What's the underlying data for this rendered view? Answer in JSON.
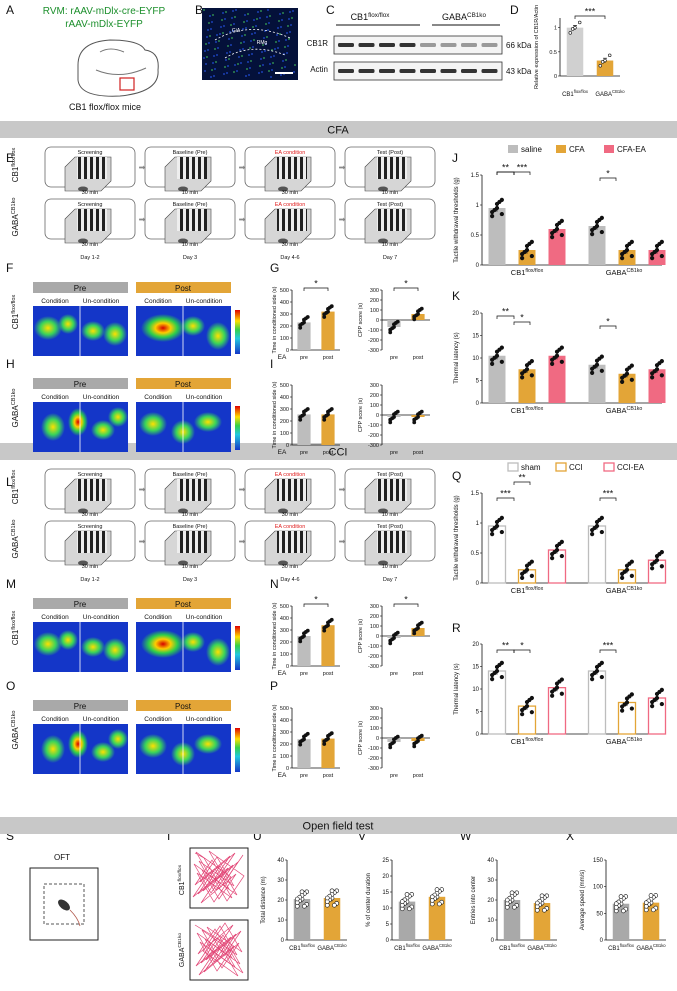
{
  "panel_letters": [
    "A",
    "B",
    "C",
    "D",
    "E",
    "F",
    "G",
    "H",
    "I",
    "J",
    "K",
    "L",
    "M",
    "N",
    "O",
    "P",
    "Q",
    "R",
    "S",
    "T",
    "U",
    "V",
    "W",
    "X"
  ],
  "sections": {
    "cfa": "CFA",
    "cci": "CCI",
    "oft": "Open field test"
  },
  "panel_a": {
    "virus_line1": "RVM: rAAV-mDlx-cre-EYFP",
    "virus_line2": "rAAV-mDlx-EYFP",
    "mouse_label": "CB1 flox/flox mice"
  },
  "panel_b": {
    "region_left": "GiA",
    "region_right": "RMg"
  },
  "panel_c": {
    "group1": "CB1",
    "group1_sup": "flox/flox",
    "group2": "GABA",
    "group2_sup": "CB1ko",
    "band1": "CB1R",
    "band1_size": "66 kDa",
    "band2": "Actin",
    "band2_size": "43 kDa"
  },
  "genotypes": {
    "flox": "CB1",
    "flox_sup": "flox/flox",
    "ko": "GABA",
    "ko_sup": "CB1ko"
  },
  "protocol": {
    "stages": [
      "Screening",
      "Baseline (Pre)",
      "EA condition",
      "Test (Post)"
    ],
    "durations": [
      "30 min",
      "10 min",
      "30 min",
      "10 min"
    ],
    "days": [
      "Day 1-2",
      "Day 3",
      "Day 4-6",
      "Day 7"
    ]
  },
  "heatmap": {
    "pre": "Pre",
    "post": "Post",
    "condition": "Condition",
    "uncondition": "Un-condition"
  },
  "legends": {
    "cfa": [
      "saline",
      "CFA",
      "CFA-EA"
    ],
    "cci": [
      "sham",
      "CCI",
      "CCI-EA"
    ]
  },
  "colors": {
    "grey": "#bdbdbd",
    "orange": "#e3a537",
    "pink": "#f06a82",
    "banner": "#c8c8c8",
    "red_text": "#e02020"
  },
  "significance": {
    "three": "***",
    "two": "**",
    "one": "*"
  },
  "oft": {
    "label": "OFT"
  },
  "chart_data": [
    {
      "panel": "D",
      "type": "bar",
      "title": "",
      "ylabel": "Relative expression of CB1R/Actin",
      "categories": [
        "CB1 flox/flox",
        "GABA CB1ko"
      ],
      "values": [
        1.0,
        0.32
      ],
      "ylim": [
        0,
        1.2
      ],
      "sig": "***"
    },
    {
      "panel": "G-left",
      "type": "bar",
      "ylabel": "Time in conditioned side (s)",
      "xlabel_prefix": "EA",
      "categories": [
        "pre",
        "post"
      ],
      "values": [
        230,
        320
      ],
      "yticks": [
        0,
        100,
        200,
        300,
        400,
        500
      ],
      "ylim": [
        0,
        500
      ],
      "sig": "*"
    },
    {
      "panel": "G-right",
      "type": "bar",
      "ylabel": "CPP score (s)",
      "categories": [
        "pre",
        "post"
      ],
      "values": [
        -70,
        60
      ],
      "yticks": [
        -300,
        -200,
        -100,
        0,
        100,
        200,
        300
      ],
      "ylim": [
        -300,
        300
      ],
      "sig": "*"
    },
    {
      "panel": "I-left",
      "type": "bar",
      "ylabel": "Time in conditioned side (s)",
      "xlabel_prefix": "EA",
      "categories": [
        "pre",
        "post"
      ],
      "values": [
        255,
        255
      ],
      "yticks": [
        0,
        100,
        200,
        300,
        400,
        500
      ],
      "ylim": [
        0,
        500
      ]
    },
    {
      "panel": "I-right",
      "type": "bar",
      "ylabel": "CPP score (s)",
      "categories": [
        "pre",
        "post"
      ],
      "values": [
        -20,
        -20
      ],
      "yticks": [
        -300,
        -200,
        -100,
        0,
        100,
        200,
        300
      ],
      "ylim": [
        -300,
        300
      ]
    },
    {
      "panel": "J",
      "type": "bar",
      "ylabel": "Tactile withdrawal thresholds (g)",
      "groups": [
        "CB1 flox/flox",
        "GABA CB1ko"
      ],
      "series": [
        {
          "name": "saline",
          "values": [
            0.95,
            0.65
          ]
        },
        {
          "name": "CFA",
          "values": [
            0.25,
            0.25
          ]
        },
        {
          "name": "CFA-EA",
          "values": [
            0.6,
            0.25
          ]
        }
      ],
      "yticks": [
        0.0,
        0.5,
        1.0,
        1.5
      ],
      "ylim": [
        0,
        1.5
      ]
    },
    {
      "panel": "K",
      "type": "bar",
      "ylabel": "Thermal latency (s)",
      "groups": [
        "CB1 flox/flox",
        "GABA CB1ko"
      ],
      "series": [
        {
          "name": "saline",
          "values": [
            10.5,
            8.5
          ]
        },
        {
          "name": "CFA",
          "values": [
            7.5,
            6.5
          ]
        },
        {
          "name": "CFA-EA",
          "values": [
            10.5,
            7.5
          ]
        }
      ],
      "yticks": [
        0,
        5,
        10,
        15,
        20
      ],
      "ylim": [
        0,
        20
      ]
    },
    {
      "panel": "N-left",
      "type": "bar",
      "ylabel": "Time in conditioned side (s)",
      "xlabel_prefix": "EA",
      "categories": [
        "pre",
        "post"
      ],
      "values": [
        250,
        340
      ],
      "yticks": [
        0,
        100,
        200,
        300,
        400,
        500
      ],
      "ylim": [
        0,
        500
      ],
      "sig": "*"
    },
    {
      "panel": "N-right",
      "type": "bar",
      "ylabel": "CPP score (s)",
      "categories": [
        "pre",
        "post"
      ],
      "values": [
        -20,
        80
      ],
      "yticks": [
        -300,
        -200,
        -100,
        0,
        100,
        200,
        300
      ],
      "ylim": [
        -300,
        300
      ],
      "sig": "*"
    },
    {
      "panel": "P-left",
      "type": "bar",
      "ylabel": "Time in conditioned side (s)",
      "xlabel_prefix": "EA",
      "categories": [
        "pre",
        "post"
      ],
      "values": [
        240,
        245
      ],
      "yticks": [
        0,
        100,
        200,
        300,
        400,
        500
      ],
      "ylim": [
        0,
        500
      ]
    },
    {
      "panel": "P-right",
      "type": "bar",
      "ylabel": "CPP score (s)",
      "categories": [
        "pre",
        "post"
      ],
      "values": [
        -40,
        -30
      ],
      "yticks": [
        -300,
        -200,
        -100,
        0,
        100,
        200,
        300
      ],
      "ylim": [
        -300,
        300
      ]
    },
    {
      "panel": "Q",
      "type": "bar",
      "ylabel": "Tactile withdrawal thresholds (g)",
      "groups": [
        "CB1 flox/flox",
        "GABA CB1ko"
      ],
      "series": [
        {
          "name": "sham",
          "values": [
            0.95,
            0.95
          ]
        },
        {
          "name": "CCI",
          "values": [
            0.22,
            0.22
          ]
        },
        {
          "name": "CCI-EA",
          "values": [
            0.55,
            0.38
          ]
        }
      ],
      "yticks": [
        0.0,
        0.5,
        1.0,
        1.5
      ],
      "ylim": [
        0,
        1.5
      ]
    },
    {
      "panel": "R",
      "type": "bar",
      "ylabel": "Thermal latency (s)",
      "groups": [
        "CB1 flox/flox",
        "GABA CB1ko"
      ],
      "series": [
        {
          "name": "sham",
          "values": [
            14,
            14
          ]
        },
        {
          "name": "CCI",
          "values": [
            6.2,
            7.0
          ]
        },
        {
          "name": "CCI-EA",
          "values": [
            10.3,
            8.0
          ]
        }
      ],
      "yticks": [
        0,
        5,
        10,
        15,
        20
      ],
      "ylim": [
        0,
        20
      ]
    },
    {
      "panel": "U",
      "type": "bar",
      "ylabel": "Total distance (m)",
      "categories": [
        "CB1 flox/flox",
        "GABA CB1ko"
      ],
      "values": [
        20.5,
        21
      ],
      "yticks": [
        0,
        10,
        20,
        30,
        40
      ],
      "ylim": [
        0,
        40
      ]
    },
    {
      "panel": "V",
      "type": "bar",
      "ylabel": "% of center duration",
      "categories": [
        "CB1 flox/flox",
        "GABA CB1ko"
      ],
      "values": [
        12,
        13.5
      ],
      "yticks": [
        0,
        5,
        10,
        15,
        20,
        25
      ],
      "ylim": [
        0,
        25
      ]
    },
    {
      "panel": "W",
      "type": "bar",
      "ylabel": "Entries into center",
      "categories": [
        "CB1 flox/flox",
        "GABA CB1ko"
      ],
      "values": [
        20,
        18.5
      ],
      "yticks": [
        0,
        10,
        20,
        30,
        40
      ],
      "ylim": [
        0,
        40
      ]
    },
    {
      "panel": "X",
      "type": "bar",
      "ylabel": "Average speed (mm/s)",
      "categories": [
        "CB1 flox/flox",
        "GABA CB1ko"
      ],
      "values": [
        68,
        70
      ],
      "yticks": [
        0,
        50,
        100,
        150
      ],
      "ylim": [
        0,
        150
      ]
    }
  ]
}
